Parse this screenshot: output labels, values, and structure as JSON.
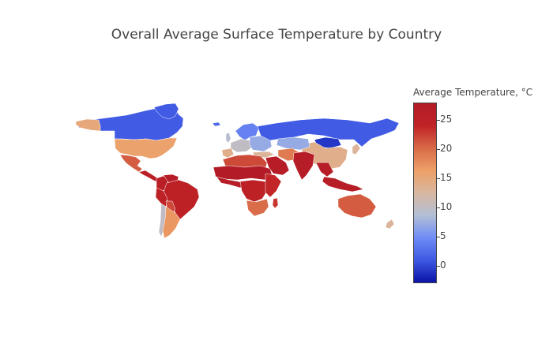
{
  "title": "Overall Average Surface Temperature by Country",
  "colorbar": {
    "title": "Average Temperature, °C",
    "range": [
      -3,
      28
    ],
    "ticks": [
      0,
      5,
      10,
      15,
      20,
      25
    ],
    "tick_labels": [
      "0",
      "5",
      "10",
      "15",
      "20",
      "25"
    ],
    "colorscale": [
      "#0a13a8",
      "#3f59e3",
      "#6f8cf5",
      "#b3bfd6",
      "#d8b7a0",
      "#eda067",
      "#d86a47",
      "#c02326",
      "#b31b26"
    ]
  },
  "chart_data": {
    "type": "choropleth",
    "title": "Overall Average Surface Temperature by Country",
    "colorbar_title": "Average Temperature, °C",
    "zrange": [
      -3,
      28
    ],
    "regions": [
      {
        "name": "Canada",
        "value": 1
      },
      {
        "name": "Alaska",
        "value": 15
      },
      {
        "name": "Greenland",
        "value": 1
      },
      {
        "name": "United States",
        "value": 16
      },
      {
        "name": "Mexico",
        "value": 21
      },
      {
        "name": "Central America",
        "value": 26
      },
      {
        "name": "Colombia",
        "value": 26
      },
      {
        "name": "Venezuela",
        "value": 27
      },
      {
        "name": "Brazil",
        "value": 25
      },
      {
        "name": "Peru",
        "value": 25
      },
      {
        "name": "Bolivia",
        "value": 22
      },
      {
        "name": "Chile",
        "value": 10
      },
      {
        "name": "Argentina",
        "value": 17
      },
      {
        "name": "Iceland",
        "value": 2
      },
      {
        "name": "Scandinavia",
        "value": 4
      },
      {
        "name": "United Kingdom",
        "value": 9
      },
      {
        "name": "Western Europe",
        "value": 10
      },
      {
        "name": "Eastern Europe",
        "value": 7
      },
      {
        "name": "Iberia",
        "value": 14
      },
      {
        "name": "Russia",
        "value": 1
      },
      {
        "name": "Mongolia",
        "value": -1
      },
      {
        "name": "China",
        "value": 14
      },
      {
        "name": "Turkey",
        "value": 13
      },
      {
        "name": "Kazakhstan",
        "value": 7
      },
      {
        "name": "North Africa",
        "value": 22
      },
      {
        "name": "Sahel",
        "value": 28
      },
      {
        "name": "West Africa",
        "value": 27
      },
      {
        "name": "Central Africa",
        "value": 25
      },
      {
        "name": "East Africa",
        "value": 24
      },
      {
        "name": "Southern Africa",
        "value": 20
      },
      {
        "name": "Madagascar",
        "value": 23
      },
      {
        "name": "Arabian Peninsula",
        "value": 27
      },
      {
        "name": "Iran",
        "value": 19
      },
      {
        "name": "India",
        "value": 27
      },
      {
        "name": "Southeast Asia",
        "value": 27
      },
      {
        "name": "Indonesia",
        "value": 27
      },
      {
        "name": "Japan",
        "value": 13
      },
      {
        "name": "Australia",
        "value": 21
      },
      {
        "name": "New Zealand",
        "value": 13
      }
    ]
  }
}
